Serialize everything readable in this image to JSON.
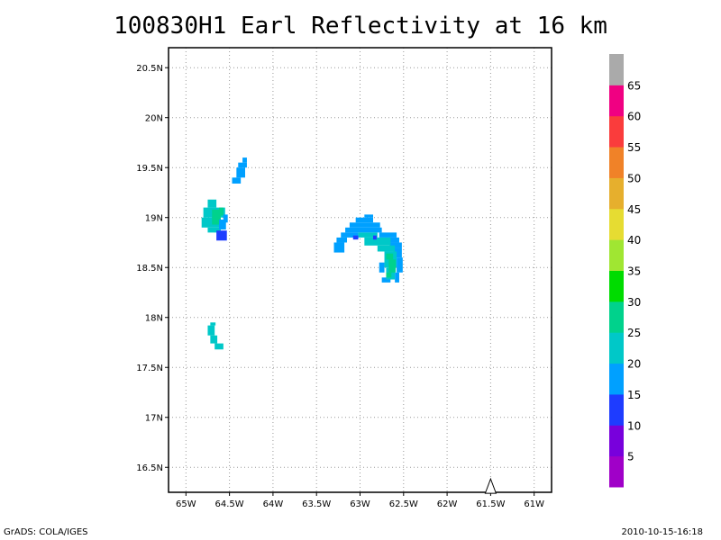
{
  "title": "100830H1 Earl Reflectivity at 16 km",
  "footer_left": "GrADS: COLA/IGES",
  "footer_right": "2010-10-15-16:18",
  "map": {
    "lon_range": [
      -65.2,
      -60.8
    ],
    "lat_range": [
      16.25,
      20.7
    ],
    "x_ticks": [
      {
        "value": -65,
        "label": "65W"
      },
      {
        "value": -64.5,
        "label": "64.5W"
      },
      {
        "value": -64,
        "label": "64W"
      },
      {
        "value": -63.5,
        "label": "63.5W"
      },
      {
        "value": -63,
        "label": "63W"
      },
      {
        "value": -62.5,
        "label": "62.5W"
      },
      {
        "value": -62,
        "label": "62W"
      },
      {
        "value": -61.5,
        "label": "61.5W"
      },
      {
        "value": -61,
        "label": "61W"
      }
    ],
    "y_ticks": [
      {
        "value": 16.5,
        "label": "16.5N"
      },
      {
        "value": 17,
        "label": "17N"
      },
      {
        "value": 17.5,
        "label": "17.5N"
      },
      {
        "value": 18,
        "label": "18N"
      },
      {
        "value": 18.5,
        "label": "18.5N"
      },
      {
        "value": 19,
        "label": "19N"
      },
      {
        "value": 19.5,
        "label": "19.5N"
      },
      {
        "value": 20,
        "label": "20N"
      },
      {
        "value": 20.5,
        "label": "20.5N"
      }
    ],
    "grid": "dotted",
    "marker": {
      "type": "triangle",
      "lon": -61.5,
      "lat": 16.33
    }
  },
  "colorbar": {
    "colors": [
      "#a000c8",
      "#7800dc",
      "#1e3cff",
      "#00a0ff",
      "#00c8c8",
      "#00d28c",
      "#00dc00",
      "#a0e632",
      "#e6dc32",
      "#e6af2d",
      "#f08228",
      "#fa3c3c",
      "#f00082",
      "#aaaaaa"
    ],
    "labels": [
      "5",
      "10",
      "15",
      "20",
      "25",
      "30",
      "35",
      "40",
      "45",
      "50",
      "55",
      "60",
      "65"
    ]
  },
  "regions": [
    {
      "name": "echo-cell-north",
      "color": "#00a0ff",
      "cells": [
        [
          -64.35,
          19.55,
          0.05,
          0.05
        ],
        [
          -64.4,
          19.5,
          0.1,
          0.05
        ],
        [
          -64.42,
          19.4,
          0.1,
          0.1
        ],
        [
          -64.47,
          19.34,
          0.1,
          0.06
        ]
      ]
    },
    {
      "name": "echo-cell-west",
      "color": "#00c8c8",
      "cells": [
        [
          -64.75,
          19.1,
          0.1,
          0.08
        ],
        [
          -64.8,
          19.0,
          0.25,
          0.1
        ],
        [
          -64.82,
          18.9,
          0.22,
          0.1
        ],
        [
          -64.75,
          18.85,
          0.15,
          0.05
        ]
      ]
    },
    {
      "name": "echo-cell-west-core",
      "color": "#00d28c",
      "cells": [
        [
          -64.7,
          18.93,
          0.1,
          0.15
        ],
        [
          -64.62,
          19.02,
          0.05,
          0.08
        ]
      ]
    },
    {
      "name": "echo-cell-west-blue",
      "color": "#00a0ff",
      "cells": [
        [
          -64.62,
          18.88,
          0.08,
          0.1
        ],
        [
          -64.57,
          18.95,
          0.05,
          0.08
        ]
      ]
    },
    {
      "name": "echo-cell-west-dark",
      "color": "#1e3cff",
      "cells": [
        [
          -64.65,
          18.77,
          0.12,
          0.1
        ]
      ]
    },
    {
      "name": "echo-cell-south",
      "color": "#00c8c8",
      "cells": [
        [
          -64.72,
          17.92,
          0.06,
          0.03
        ],
        [
          -64.75,
          17.82,
          0.08,
          0.1
        ],
        [
          -64.72,
          17.74,
          0.08,
          0.08
        ],
        [
          -64.67,
          17.68,
          0.1,
          0.06
        ]
      ]
    },
    {
      "name": "echo-band-east",
      "color": "#00a0ff",
      "cells": [
        [
          -62.95,
          19.0,
          0.1,
          0.03
        ],
        [
          -63.05,
          18.95,
          0.2,
          0.05
        ],
        [
          -63.12,
          18.9,
          0.35,
          0.05
        ],
        [
          -63.17,
          18.85,
          0.42,
          0.05
        ],
        [
          -63.22,
          18.8,
          0.2,
          0.05
        ],
        [
          -63.27,
          18.75,
          0.12,
          0.05
        ],
        [
          -63.3,
          18.65,
          0.12,
          0.1
        ],
        [
          -62.78,
          18.8,
          0.2,
          0.05
        ],
        [
          -62.72,
          18.75,
          0.17,
          0.05
        ],
        [
          -62.66,
          18.7,
          0.14,
          0.05
        ],
        [
          -62.62,
          18.6,
          0.1,
          0.1
        ],
        [
          -62.58,
          18.45,
          0.07,
          0.15
        ],
        [
          -62.6,
          18.35,
          0.05,
          0.1
        ],
        [
          -62.78,
          18.45,
          0.06,
          0.1
        ],
        [
          -62.75,
          18.35,
          0.1,
          0.05
        ]
      ]
    },
    {
      "name": "echo-band-east-teal",
      "color": "#00c8c8",
      "cells": [
        [
          -63.02,
          18.8,
          0.22,
          0.05
        ],
        [
          -62.95,
          18.72,
          0.3,
          0.08
        ],
        [
          -62.8,
          18.66,
          0.2,
          0.06
        ],
        [
          -62.72,
          18.5,
          0.14,
          0.16
        ],
        [
          -62.7,
          18.38,
          0.1,
          0.12
        ]
      ]
    },
    {
      "name": "echo-band-east-core",
      "color": "#00d28c",
      "cells": [
        [
          -62.7,
          18.58,
          0.08,
          0.06
        ],
        [
          -62.67,
          18.45,
          0.08,
          0.13
        ],
        [
          -62.7,
          18.4,
          0.06,
          0.05
        ]
      ]
    },
    {
      "name": "echo-band-east-dark",
      "color": "#1e3cff",
      "cells": [
        [
          -63.08,
          18.78,
          0.06,
          0.04
        ],
        [
          -62.85,
          18.78,
          0.04,
          0.04
        ]
      ]
    }
  ]
}
